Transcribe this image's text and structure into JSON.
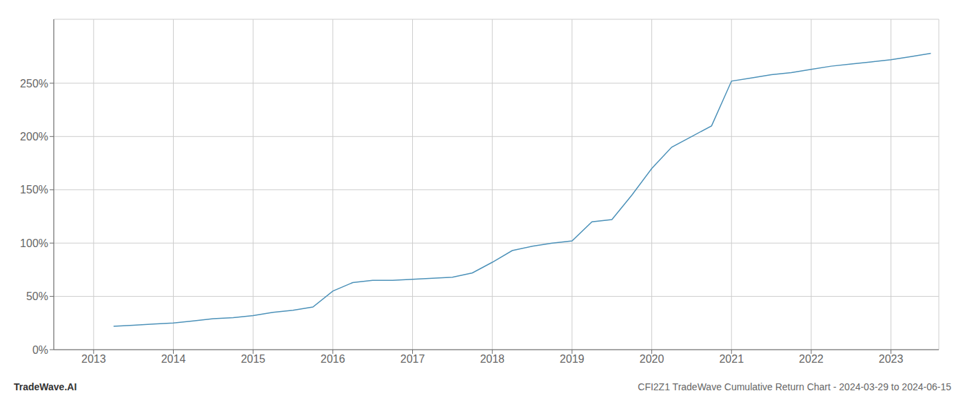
{
  "chart_data": {
    "type": "line",
    "title": "CFI2Z1 TradeWave Cumulative Return Chart - 2024-03-29 to 2024-06-15",
    "annotations": [
      "TradeWave.AI"
    ],
    "x": [
      2013.25,
      2013.5,
      2013.75,
      2014.0,
      2014.25,
      2014.5,
      2014.75,
      2015.0,
      2015.25,
      2015.5,
      2015.75,
      2016.0,
      2016.25,
      2016.5,
      2016.75,
      2017.0,
      2017.25,
      2017.5,
      2017.75,
      2018.0,
      2018.25,
      2018.5,
      2018.75,
      2019.0,
      2019.25,
      2019.5,
      2019.75,
      2020.0,
      2020.25,
      2020.5,
      2020.75,
      2021.0,
      2021.25,
      2021.5,
      2021.75,
      2022.0,
      2022.25,
      2022.5,
      2022.75,
      2023.0,
      2023.25,
      2023.5
    ],
    "values": [
      22,
      23,
      24,
      25,
      27,
      29,
      30,
      32,
      35,
      37,
      40,
      55,
      63,
      65,
      65,
      66,
      67,
      68,
      72,
      82,
      93,
      97,
      100,
      102,
      120,
      122,
      145,
      170,
      190,
      200,
      210,
      252,
      255,
      258,
      260,
      263,
      266,
      268,
      270,
      272,
      275,
      278
    ],
    "color": "#4a90b8",
    "xlim": [
      2012.5,
      2023.6
    ],
    "xticks": [
      2013,
      2014,
      2015,
      2016,
      2017,
      2018,
      2019,
      2020,
      2021,
      2022,
      2023
    ],
    "ylim": [
      0,
      310
    ],
    "yticks": [
      {
        "value": 0,
        "label": "0%"
      },
      {
        "value": 50,
        "label": "50%"
      },
      {
        "value": 100,
        "label": "100%"
      },
      {
        "value": 150,
        "label": "150%"
      },
      {
        "value": 200,
        "label": "200%"
      },
      {
        "value": 250,
        "label": "250%"
      }
    ],
    "grid": true
  }
}
